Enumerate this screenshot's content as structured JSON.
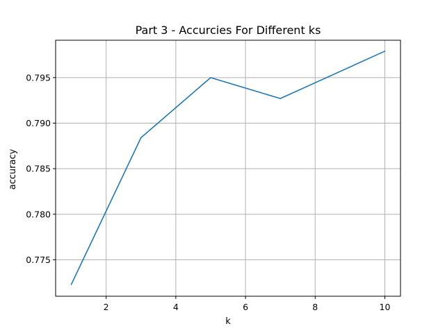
{
  "chart_data": {
    "type": "line",
    "title": "Part 3 - Accurcies For Different ks",
    "xlabel": "k",
    "ylabel": "accuracy",
    "x": [
      1,
      3,
      5,
      7,
      10
    ],
    "series": [
      {
        "values": [
          0.7723,
          0.7884,
          0.795,
          0.7927,
          0.7979
        ],
        "color": "#1f77b4"
      }
    ],
    "xlim": [
      0.55,
      10.45
    ],
    "ylim": [
      0.771,
      0.7991
    ],
    "xticks": [
      2,
      4,
      6,
      8,
      10
    ],
    "xtick_labels": [
      "2",
      "4",
      "6",
      "8",
      "10"
    ],
    "yticks": [
      0.775,
      0.78,
      0.785,
      0.79,
      0.795
    ],
    "ytick_labels": [
      "0.775",
      "0.780",
      "0.785",
      "0.790",
      "0.795"
    ],
    "grid": true,
    "legend": "none"
  }
}
